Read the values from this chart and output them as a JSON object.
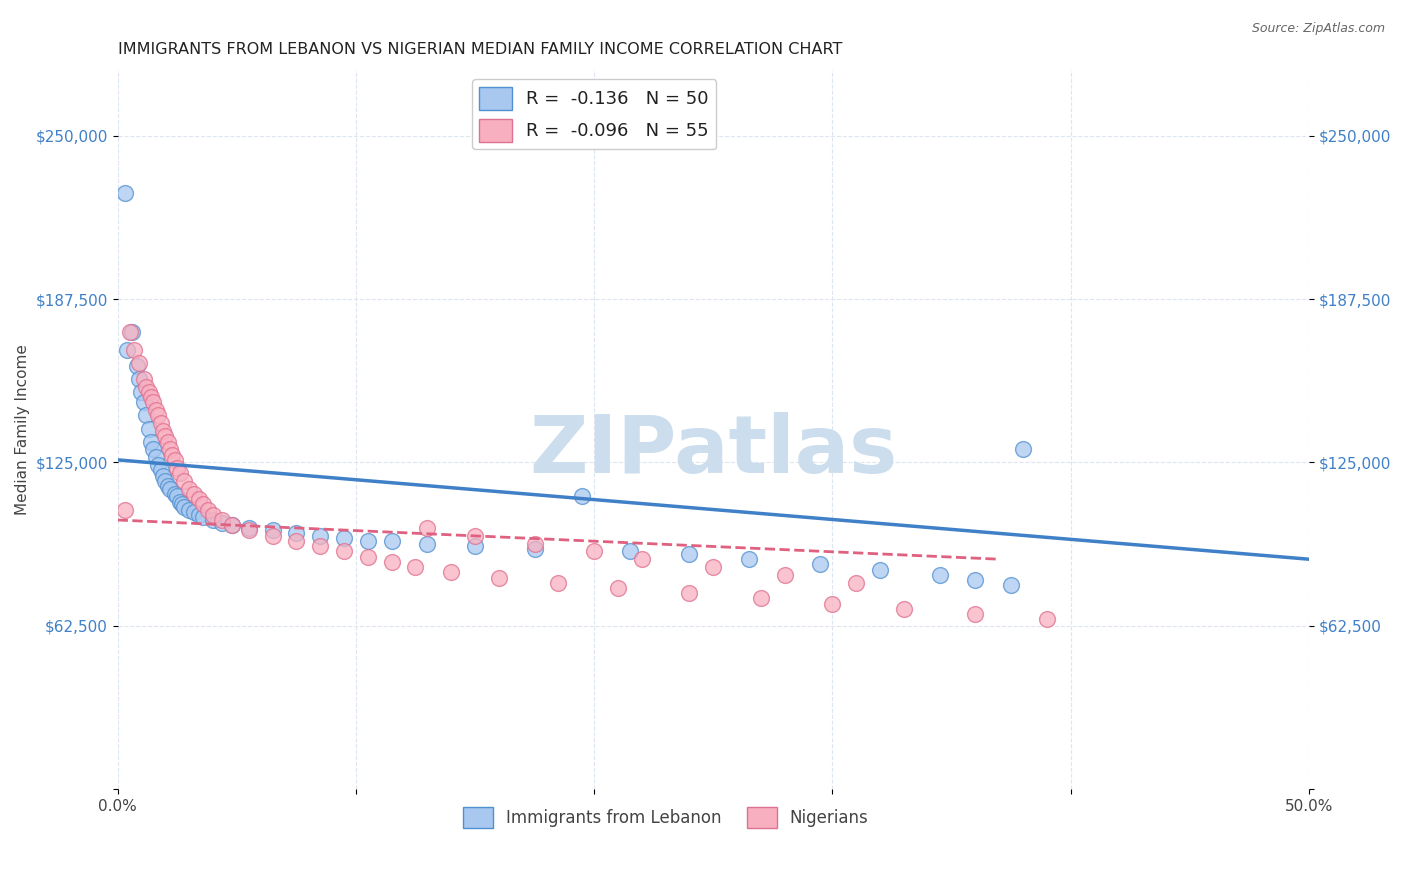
{
  "title": "IMMIGRANTS FROM LEBANON VS NIGERIAN MEDIAN FAMILY INCOME CORRELATION CHART",
  "source": "Source: ZipAtlas.com",
  "ylabel": "Median Family Income",
  "xlim": [
    0.0,
    0.5
  ],
  "ylim": [
    0,
    275000
  ],
  "yticks": [
    0,
    62500,
    125000,
    187500,
    250000
  ],
  "ytick_labels": [
    "",
    "$62,500",
    "$125,000",
    "$187,500",
    "$250,000"
  ],
  "xticks": [
    0.0,
    0.1,
    0.2,
    0.3,
    0.4,
    0.5
  ],
  "xtick_labels": [
    "0.0%",
    "",
    "",
    "",
    "",
    "50.0%"
  ],
  "legend_r1": "R =  -0.136   N = 50",
  "legend_r2": "R =  -0.096   N = 55",
  "legend_label1": "Immigrants from Lebanon",
  "legend_label2": "Nigerians",
  "blue_color": "#a8c8f0",
  "pink_color": "#f8b0c0",
  "blue_edge_color": "#5090d0",
  "pink_edge_color": "#e07090",
  "blue_line_color": "#4080c8",
  "pink_line_color": "#e06080",
  "ytick_color": "#4080c8",
  "watermark": "ZIPatlas",
  "watermark_color": "#ccdded",
  "blue_scatter_x": [
    0.003,
    0.006,
    0.004,
    0.008,
    0.009,
    0.01,
    0.011,
    0.012,
    0.013,
    0.014,
    0.015,
    0.016,
    0.017,
    0.018,
    0.019,
    0.02,
    0.021,
    0.022,
    0.024,
    0.025,
    0.026,
    0.027,
    0.028,
    0.03,
    0.032,
    0.034,
    0.036,
    0.04,
    0.044,
    0.048,
    0.055,
    0.065,
    0.075,
    0.085,
    0.095,
    0.105,
    0.115,
    0.13,
    0.15,
    0.175,
    0.195,
    0.215,
    0.24,
    0.265,
    0.295,
    0.32,
    0.345,
    0.36,
    0.375,
    0.38
  ],
  "blue_scatter_y": [
    228000,
    175000,
    168000,
    162000,
    157000,
    152000,
    148000,
    143000,
    138000,
    133000,
    130000,
    127000,
    124000,
    122000,
    120000,
    118000,
    116000,
    115000,
    113000,
    112000,
    110000,
    109000,
    108000,
    107000,
    106000,
    105000,
    104000,
    103000,
    102000,
    101000,
    100000,
    99000,
    98000,
    97000,
    96000,
    95000,
    95000,
    94000,
    93000,
    92000,
    112000,
    91000,
    90000,
    88000,
    86000,
    84000,
    82000,
    80000,
    78000,
    130000
  ],
  "pink_scatter_x": [
    0.003,
    0.005,
    0.007,
    0.009,
    0.011,
    0.012,
    0.013,
    0.014,
    0.015,
    0.016,
    0.017,
    0.018,
    0.019,
    0.02,
    0.021,
    0.022,
    0.023,
    0.024,
    0.025,
    0.026,
    0.028,
    0.03,
    0.032,
    0.034,
    0.036,
    0.038,
    0.04,
    0.044,
    0.048,
    0.055,
    0.065,
    0.075,
    0.085,
    0.095,
    0.105,
    0.115,
    0.125,
    0.14,
    0.16,
    0.185,
    0.21,
    0.24,
    0.27,
    0.3,
    0.33,
    0.36,
    0.39,
    0.13,
    0.15,
    0.175,
    0.2,
    0.22,
    0.25,
    0.28,
    0.31
  ],
  "pink_scatter_y": [
    107000,
    175000,
    168000,
    163000,
    157000,
    154000,
    152000,
    150000,
    148000,
    145000,
    143000,
    140000,
    137000,
    135000,
    133000,
    130000,
    128000,
    126000,
    123000,
    121000,
    118000,
    115000,
    113000,
    111000,
    109000,
    107000,
    105000,
    103000,
    101000,
    99000,
    97000,
    95000,
    93000,
    91000,
    89000,
    87000,
    85000,
    83000,
    81000,
    79000,
    77000,
    75000,
    73000,
    71000,
    69000,
    67000,
    65000,
    100000,
    97000,
    94000,
    91000,
    88000,
    85000,
    82000,
    79000
  ],
  "blue_trendline_x": [
    0.0,
    0.5
  ],
  "blue_trendline_y": [
    126000,
    88000
  ],
  "pink_trendline_x": [
    0.0,
    0.37
  ],
  "pink_trendline_y": [
    103000,
    88000
  ],
  "background_color": "#ffffff",
  "grid_color": "#dde5f0",
  "title_fontsize": 11.5,
  "axis_label_fontsize": 11
}
